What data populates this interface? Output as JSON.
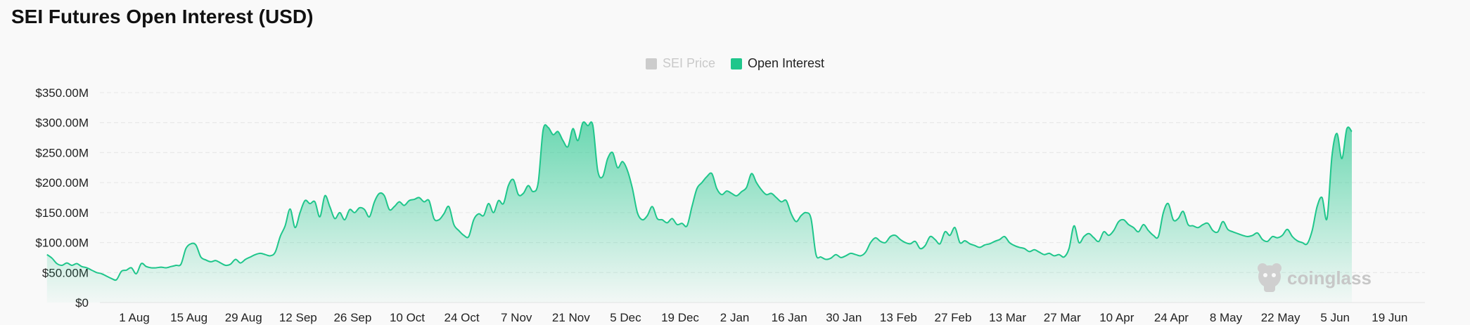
{
  "page": {
    "title": "SEI Futures Open Interest (USD)",
    "watermark": "coinglass"
  },
  "legend": {
    "items": [
      {
        "label": "SEI Price",
        "color": "#cccccc",
        "active": false
      },
      {
        "label": "Open Interest",
        "color": "#1fc68b",
        "active": true
      }
    ]
  },
  "chart_data": {
    "type": "area",
    "x_tick_labels": [
      "1 Aug",
      "15 Aug",
      "29 Aug",
      "12 Sep",
      "26 Sep",
      "10 Oct",
      "24 Oct",
      "7 Nov",
      "21 Nov",
      "5 Dec",
      "19 Dec",
      "2 Jan",
      "16 Jan",
      "30 Jan",
      "13 Feb",
      "27 Feb",
      "13 Mar",
      "27 Mar",
      "10 Apr",
      "24 Apr",
      "8 May",
      "22 May",
      "5 Jun",
      "19 Jun"
    ],
    "y_tick_labels": [
      "$0",
      "$50.00M",
      "$100.00M",
      "$150.00M",
      "$200.00M",
      "$250.00M",
      "$300.00M",
      "$350.00M"
    ],
    "ylim": [
      0,
      350
    ],
    "y_unit": "M USD",
    "grid": true,
    "legend_position": "top-center",
    "series": [
      {
        "name": "Open Interest",
        "color": "#1fc68b",
        "x_start_index": -1.6,
        "x_step": 0.0909,
        "values": [
          80,
          74,
          65,
          62,
          66,
          62,
          65,
          60,
          58,
          54,
          50,
          48,
          44,
          40,
          38,
          52,
          54,
          58,
          48,
          65,
          60,
          58,
          58,
          59,
          58,
          60,
          62,
          64,
          90,
          98,
          96,
          76,
          71,
          68,
          70,
          66,
          62,
          64,
          72,
          66,
          72,
          76,
          80,
          82,
          80,
          78,
          84,
          110,
          128,
          156,
          125,
          150,
          170,
          165,
          168,
          143,
          178,
          160,
          140,
          150,
          138,
          155,
          150,
          158,
          155,
          143,
          168,
          182,
          178,
          155,
          160,
          168,
          162,
          170,
          172,
          175,
          168,
          170,
          140,
          138,
          148,
          160,
          130,
          120,
          112,
          110,
          138,
          148,
          145,
          165,
          150,
          170,
          165,
          195,
          205,
          180,
          182,
          195,
          185,
          200,
          288,
          292,
          280,
          285,
          270,
          260,
          290,
          270,
          300,
          295,
          296,
          220,
          210,
          240,
          250,
          225,
          235,
          220,
          190,
          150,
          138,
          145,
          160,
          140,
          138,
          133,
          140,
          130,
          132,
          128,
          160,
          190,
          200,
          210,
          215,
          190,
          180,
          186,
          182,
          178,
          185,
          192,
          215,
          200,
          188,
          180,
          182,
          175,
          168,
          170,
          148,
          135,
          145,
          150,
          140,
          80,
          76,
          72,
          74,
          80,
          75,
          78,
          82,
          80,
          78,
          84,
          100,
          108,
          102,
          100,
          110,
          112,
          105,
          100,
          98,
          102,
          90,
          95,
          110,
          105,
          98,
          118,
          112,
          125,
          100,
          103,
          98,
          95,
          92,
          96,
          98,
          102,
          105,
          110,
          100,
          95,
          92,
          90,
          85,
          88,
          84,
          80,
          82,
          78,
          80,
          76,
          90,
          128,
          100,
          110,
          115,
          108,
          102,
          118,
          112,
          120,
          135,
          138,
          130,
          125,
          118,
          130,
          120,
          112,
          110,
          150,
          165,
          138,
          140,
          152,
          130,
          128,
          125,
          130,
          132,
          120,
          118,
          135,
          122,
          118,
          115,
          112,
          110,
          112,
          116,
          105,
          102,
          110,
          108,
          112,
          122,
          110,
          103,
          100,
          98,
          120,
          160,
          175,
          140,
          245,
          282,
          240,
          290,
          285
        ]
      }
    ]
  }
}
